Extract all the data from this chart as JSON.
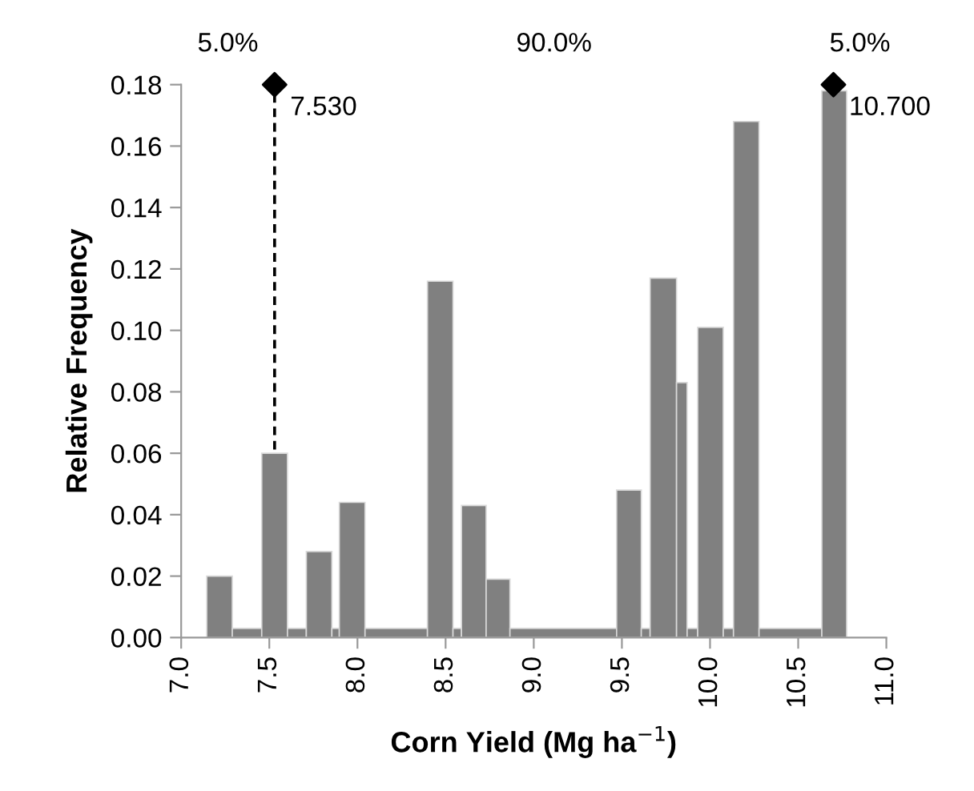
{
  "chart_data": {
    "type": "histogram",
    "xlabel": "Corn Yield (Mg ha$^{−1}$)",
    "ylabel": "Relative Frequency",
    "bins": [
      7.145,
      7.29,
      7.457,
      7.603,
      7.71,
      7.855,
      7.897,
      8.043,
      8.397,
      8.542,
      8.59,
      8.73,
      8.865,
      9.47,
      9.61,
      9.66,
      9.81,
      9.87,
      9.93,
      10.075,
      10.133,
      10.278,
      10.634,
      10.775
    ],
    "values": [
      0.02,
      0.003,
      0.06,
      0.003,
      0.028,
      0.003,
      0.044,
      0.003,
      0.116,
      0.003,
      0.043,
      0.019,
      0.003,
      0.048,
      0.003,
      0.117,
      0.083,
      0.003,
      0.101,
      0.003,
      0.168,
      0.003,
      0.178
    ],
    "color": "#808080",
    "series": [
      {
        "type": "scatter",
        "x": [
          7.53,
          10.7
        ],
        "values": [
          0.18,
          0.18
        ],
        "color": "#000000",
        "marker": "diamond"
      }
    ],
    "ref_lines": [
      {
        "axis": "x",
        "value": 7.53,
        "color": "#000000",
        "line_style": "dashed"
      }
    ],
    "annotations": [
      "5.0%",
      "90.0%",
      "5.0%",
      {
        "text": "7.530",
        "x": 7.53,
        "y": 0.18
      },
      {
        "text": "10.700",
        "x": 10.7,
        "y": 0.18
      }
    ],
    "xlim": [
      7.0,
      11.0
    ],
    "xticks": [
      {
        "value": 7.0,
        "label": "7.0"
      },
      {
        "value": 7.5,
        "label": "7.5"
      },
      {
        "value": 8.0,
        "label": "8.0"
      },
      {
        "value": 8.5,
        "label": "8.5"
      },
      {
        "value": 9.0,
        "label": "9.0"
      },
      {
        "value": 9.5,
        "label": "9.5"
      },
      {
        "value": 10.0,
        "label": "10.0"
      },
      {
        "value": 10.5,
        "label": "10.5"
      },
      {
        "value": 11.0,
        "label": "11.0"
      }
    ],
    "ylim": [
      0,
      0.18
    ],
    "yticks": [
      {
        "value": 0,
        "label": "0.00"
      },
      {
        "value": 0.02,
        "label": "0.02"
      },
      {
        "value": 0.04,
        "label": "0.04"
      },
      {
        "value": 0.06,
        "label": "0.06"
      },
      {
        "value": 0.08,
        "label": "0.08"
      },
      {
        "value": 0.1,
        "label": "0.10"
      },
      {
        "value": 0.12,
        "label": "0.12"
      },
      {
        "value": 0.14,
        "label": "0.14"
      },
      {
        "value": 0.16,
        "label": "0.16"
      },
      {
        "value": 0.18,
        "label": "0.18"
      }
    ],
    "grid": false,
    "legend": false
  }
}
